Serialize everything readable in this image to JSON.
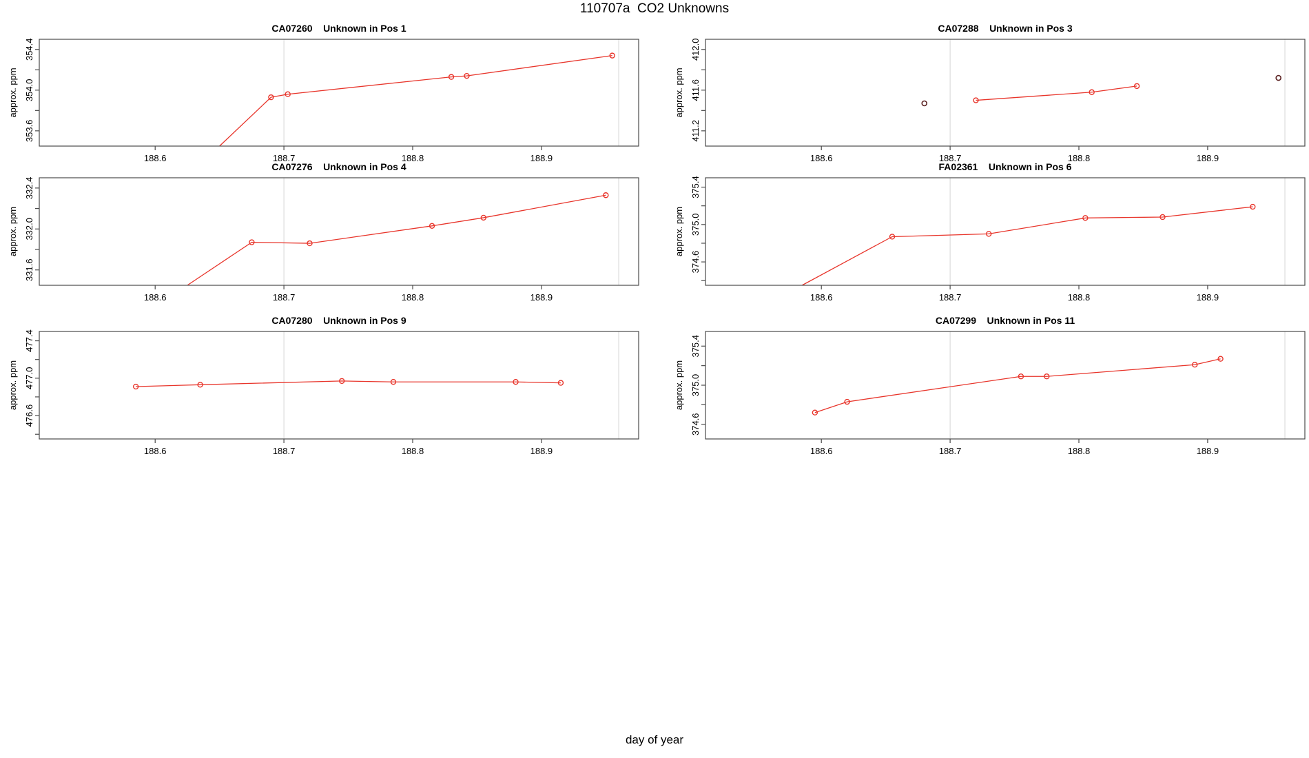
{
  "figure": {
    "title": "110707a  CO2 Unknowns",
    "xlabel": "day of year",
    "ylabel": "approx. ppm"
  },
  "chart_data": {
    "type": "line",
    "title": "110707a  CO2 Unknowns",
    "xlabel": "day of year",
    "ylabel": "approx. ppm",
    "xlim": [
      188.51,
      188.9755
    ],
    "x_ticks": [
      188.6,
      188.7,
      188.8,
      188.9
    ],
    "reference_vlines": [
      188.7,
      188.96
    ],
    "legend": "none",
    "grid": "reference vertical lines only",
    "colors": {
      "series": "#e8352b",
      "dark_points": "#5c2323",
      "vline": "#dcdcdc",
      "axis": "#4a4a4a"
    },
    "panels": [
      {
        "sample_id": "CA07260",
        "position": "Pos 1",
        "title": "CA07260    Unknown in Pos 1",
        "ylim": [
          353.45,
          354.5
        ],
        "y_ticks_labeled": [
          353.6,
          354.0,
          354.4
        ],
        "y_tick_step": 0.2,
        "lead_in": {
          "x": 188.65,
          "y": 353.45
        },
        "points": {
          "x": [
            188.69,
            188.703,
            188.83,
            188.842,
            188.955
          ],
          "y": [
            353.93,
            353.96,
            354.13,
            354.14,
            354.34
          ]
        },
        "isolated_points": {
          "x": [],
          "y": []
        }
      },
      {
        "sample_id": "CA07288",
        "position": "Pos 3",
        "title": "CA07288    Unknown in Pos 3",
        "ylim": [
          411.05,
          412.1
        ],
        "y_ticks_labeled": [
          411.2,
          411.6,
          412.0
        ],
        "y_tick_step": 0.2,
        "lead_in": null,
        "points": {
          "x": [
            188.72,
            188.81,
            188.845
          ],
          "y": [
            411.5,
            411.58,
            411.64
          ]
        },
        "isolated_points": {
          "x": [
            188.68,
            188.955
          ],
          "y": [
            411.47,
            411.72
          ]
        }
      },
      {
        "sample_id": "CA07276",
        "position": "Pos 4",
        "title": "CA07276    Unknown in Pos 4",
        "ylim": [
          331.45,
          332.5
        ],
        "y_ticks_labeled": [
          331.6,
          332.0,
          332.4
        ],
        "y_tick_step": 0.2,
        "lead_in": {
          "x": 188.625,
          "y": 331.45
        },
        "points": {
          "x": [
            188.675,
            188.72,
            188.815,
            188.855,
            188.95
          ],
          "y": [
            331.87,
            331.86,
            332.03,
            332.11,
            332.33
          ]
        },
        "isolated_points": {
          "x": [],
          "y": []
        }
      },
      {
        "sample_id": "FA02361",
        "position": "Pos 6",
        "title": "FA02361    Unknown in Pos 6",
        "ylim": [
          374.35,
          375.5
        ],
        "y_ticks_labeled": [
          374.6,
          375.0,
          375.4
        ],
        "y_tick_step": 0.2,
        "lead_in": {
          "x": 188.585,
          "y": 374.35
        },
        "points": {
          "x": [
            188.655,
            188.73,
            188.805,
            188.865,
            188.935
          ],
          "y": [
            374.87,
            374.9,
            375.07,
            375.08,
            375.19
          ]
        },
        "isolated_points": {
          "x": [],
          "y": []
        }
      },
      {
        "sample_id": "CA07280",
        "position": "Pos 9",
        "title": "CA07280    Unknown in Pos 9",
        "ylim": [
          476.35,
          477.5
        ],
        "y_ticks_labeled": [
          476.6,
          477.0,
          477.4
        ],
        "y_tick_step": 0.2,
        "lead_in": null,
        "points": {
          "x": [
            188.585,
            188.635,
            188.745,
            188.785,
            188.88,
            188.915
          ],
          "y": [
            476.91,
            476.93,
            476.97,
            476.96,
            476.96,
            476.95
          ]
        },
        "isolated_points": {
          "x": [],
          "y": []
        }
      },
      {
        "sample_id": "CA07299",
        "position": "Pos 11",
        "title": "CA07299    Unknown in Pos 11",
        "ylim": [
          374.45,
          375.55
        ],
        "y_ticks_labeled": [
          374.6,
          375.0,
          375.4
        ],
        "y_tick_step": 0.2,
        "lead_in": null,
        "points": {
          "x": [
            188.595,
            188.62,
            188.755,
            188.775,
            188.89,
            188.91
          ],
          "y": [
            374.72,
            374.83,
            375.09,
            375.09,
            375.21,
            375.27
          ]
        },
        "isolated_points": {
          "x": [],
          "y": []
        }
      }
    ]
  }
}
